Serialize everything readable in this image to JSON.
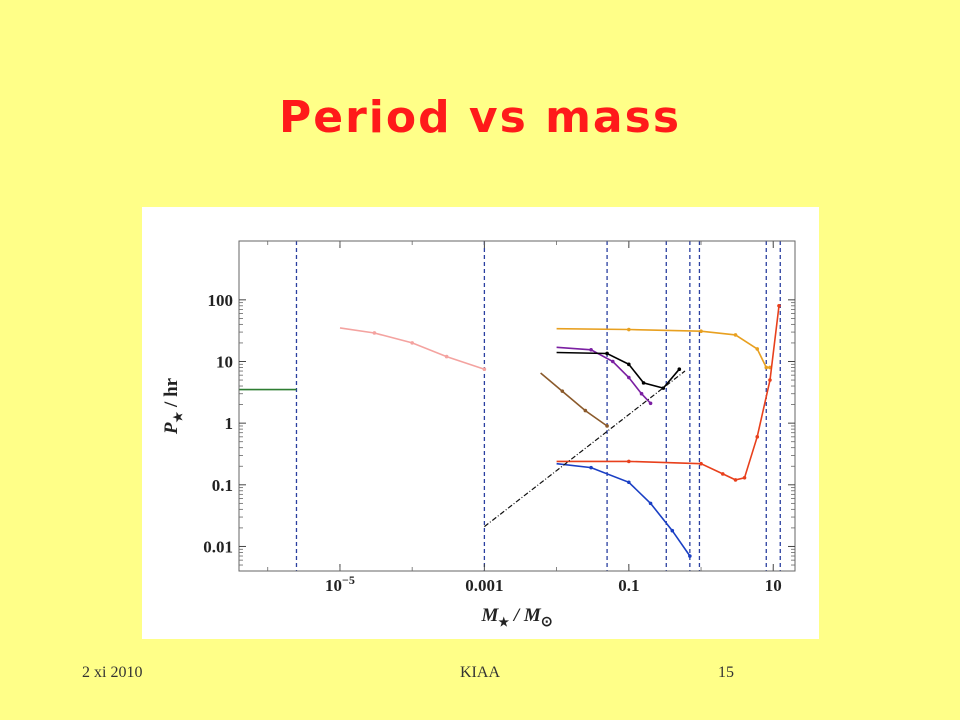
{
  "slide": {
    "title": "Period vs mass",
    "footer_date": "2 xi 2010",
    "footer_org": "KIAA",
    "footer_page": "15"
  },
  "colors": {
    "background": "#ffff88",
    "title": "#ff1a1a"
  },
  "chart_data": {
    "type": "line",
    "xscale": "log",
    "yscale": "log",
    "xlim": [
      4e-07,
      20
    ],
    "ylim": [
      0.004,
      900
    ],
    "xticks": [
      {
        "value": 1e-05,
        "label": "10",
        "exp": "−5"
      },
      {
        "value": 0.001,
        "label": "0.001"
      },
      {
        "value": 0.1,
        "label": "0.1"
      },
      {
        "value": 10,
        "label": "10"
      }
    ],
    "yticks": [
      {
        "value": 0.01,
        "label": "0.01"
      },
      {
        "value": 0.1,
        "label": "0.1"
      },
      {
        "value": 1,
        "label": "1"
      },
      {
        "value": 10,
        "label": "10"
      },
      {
        "value": 100,
        "label": "100"
      }
    ],
    "xlabel": "M",
    "xlabel_sub": "★",
    "xlabel_tail": " / M",
    "xlabel_tail_sub": "⊙",
    "ylabel": "P",
    "ylabel_sub": "★",
    "ylabel_tail": " / hr",
    "grid": false,
    "series": [
      {
        "color": "#2e7d32",
        "x": [
          4e-07,
          2.5e-06
        ],
        "y": [
          3.5,
          3.5
        ]
      },
      {
        "color": "#f4a3a0",
        "x": [
          1e-05,
          3e-05,
          0.0001,
          0.0003,
          0.001
        ],
        "y": [
          35,
          29,
          20,
          12,
          7.5
        ]
      },
      {
        "color": "#8b5a2b",
        "x": [
          0.006,
          0.012,
          0.025,
          0.05
        ],
        "y": [
          6.5,
          3.3,
          1.6,
          0.9
        ]
      },
      {
        "color": "#7b1fa2",
        "x": [
          0.01,
          0.03,
          0.06,
          0.1,
          0.15,
          0.2
        ],
        "y": [
          17,
          15.5,
          10,
          5.5,
          3,
          2.1
        ]
      },
      {
        "color": "#000000",
        "x": [
          0.01,
          0.05,
          0.1,
          0.16,
          0.3,
          0.5
        ],
        "y": [
          14,
          13.5,
          9,
          4.5,
          3.7,
          7.5
        ]
      },
      {
        "color": "#e8a020",
        "x": [
          0.01,
          0.1,
          1,
          3,
          6,
          8,
          9
        ],
        "y": [
          34,
          33,
          31,
          27,
          16,
          8,
          8
        ]
      },
      {
        "color": "#e8401c",
        "x": [
          0.01,
          0.1,
          1,
          2,
          3,
          4,
          6,
          9,
          12
        ],
        "y": [
          0.24,
          0.24,
          0.22,
          0.15,
          0.12,
          0.13,
          0.6,
          5,
          80
        ]
      },
      {
        "color": "#1a3fc4",
        "x": [
          0.01,
          0.03,
          0.1,
          0.2,
          0.4,
          0.7
        ],
        "y": [
          0.22,
          0.19,
          0.11,
          0.05,
          0.018,
          0.007
        ]
      },
      {
        "color": "#111111",
        "dash": true,
        "x": [
          0.001,
          0.6
        ],
        "y": [
          0.021,
          7
        ]
      }
    ],
    "vlines": [
      2.5e-06,
      0.001,
      0.05,
      0.33,
      0.7,
      0.95,
      8,
      12.5
    ],
    "vlines_color": "#2a3fa0",
    "steps": [
      {
        "x": [
          2.5e-06,
          2.5e-06
        ],
        "y": [
          3.5,
          900
        ]
      }
    ]
  }
}
